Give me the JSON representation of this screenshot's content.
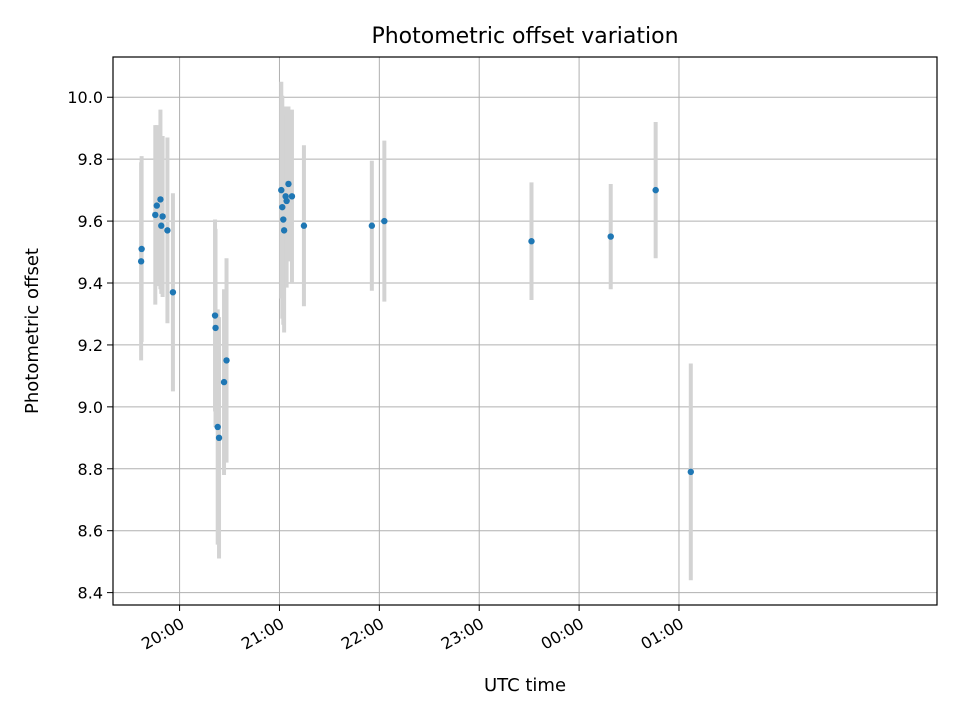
{
  "chart_data": {
    "type": "scatter",
    "title": "Photometric offset variation",
    "xlabel": "UTC time",
    "ylabel": "Photometric offset",
    "grid": true,
    "x_unit": "minutes",
    "xlim": [
      1160,
      1655
    ],
    "ylim": [
      8.36,
      10.13
    ],
    "xticks": [
      {
        "value": 1200,
        "label": "20:00"
      },
      {
        "value": 1260,
        "label": "21:00"
      },
      {
        "value": 1320,
        "label": "22:00"
      },
      {
        "value": 1380,
        "label": "23:00"
      },
      {
        "value": 1440,
        "label": "00:00"
      },
      {
        "value": 1500,
        "label": "01:00"
      }
    ],
    "yticks": [
      {
        "value": 8.4,
        "label": "8.4"
      },
      {
        "value": 8.6,
        "label": "8.6"
      },
      {
        "value": 8.8,
        "label": "8.8"
      },
      {
        "value": 9.0,
        "label": "9.0"
      },
      {
        "value": 9.2,
        "label": "9.2"
      },
      {
        "value": 9.4,
        "label": "9.4"
      },
      {
        "value": 9.6,
        "label": "9.6"
      },
      {
        "value": 9.8,
        "label": "9.8"
      },
      {
        "value": 10.0,
        "label": "10.0"
      }
    ],
    "colors": {
      "point": "#1f77b4",
      "errorbar": "#d3d3d3",
      "grid": "#b0b0b0"
    },
    "series": [
      {
        "points": [
          {
            "x": 1176.9,
            "y": 9.47,
            "err": 0.32
          },
          {
            "x": 1177.2,
            "y": 9.51,
            "err": 0.3
          },
          {
            "x": 1185.4,
            "y": 9.62,
            "err": 0.29
          },
          {
            "x": 1186.3,
            "y": 9.65,
            "err": 0.26
          },
          {
            "x": 1188.5,
            "y": 9.67,
            "err": 0.29
          },
          {
            "x": 1189.0,
            "y": 9.585,
            "err": 0.22
          },
          {
            "x": 1189.8,
            "y": 9.615,
            "err": 0.26
          },
          {
            "x": 1192.7,
            "y": 9.57,
            "err": 0.3
          },
          {
            "x": 1196.0,
            "y": 9.37,
            "err": 0.32
          },
          {
            "x": 1221.3,
            "y": 9.295,
            "err": 0.31
          },
          {
            "x": 1221.6,
            "y": 9.255,
            "err": 0.32
          },
          {
            "x": 1222.9,
            "y": 8.935,
            "err": 0.38
          },
          {
            "x": 1223.7,
            "y": 8.9,
            "err": 0.39
          },
          {
            "x": 1226.7,
            "y": 9.08,
            "err": 0.3
          },
          {
            "x": 1228.2,
            "y": 9.15,
            "err": 0.33
          },
          {
            "x": 1261.1,
            "y": 9.7,
            "err": 0.35
          },
          {
            "x": 1261.7,
            "y": 9.645,
            "err": 0.36
          },
          {
            "x": 1262.3,
            "y": 9.605,
            "err": 0.34
          },
          {
            "x": 1262.8,
            "y": 9.57,
            "err": 0.33
          },
          {
            "x": 1263.7,
            "y": 9.68,
            "err": 0.29
          },
          {
            "x": 1264.3,
            "y": 9.665,
            "err": 0.28
          },
          {
            "x": 1265.4,
            "y": 9.72,
            "err": 0.25
          },
          {
            "x": 1267.5,
            "y": 9.68,
            "err": 0.28
          },
          {
            "x": 1274.7,
            "y": 9.585,
            "err": 0.26
          },
          {
            "x": 1315.5,
            "y": 9.585,
            "err": 0.21
          },
          {
            "x": 1323.0,
            "y": 9.6,
            "err": 0.26
          },
          {
            "x": 1411.4,
            "y": 9.535,
            "err": 0.19
          },
          {
            "x": 1459.0,
            "y": 9.55,
            "err": 0.17
          },
          {
            "x": 1486.0,
            "y": 9.7,
            "err": 0.22
          },
          {
            "x": 1507.1,
            "y": 8.79,
            "err": 0.35
          }
        ]
      }
    ]
  }
}
